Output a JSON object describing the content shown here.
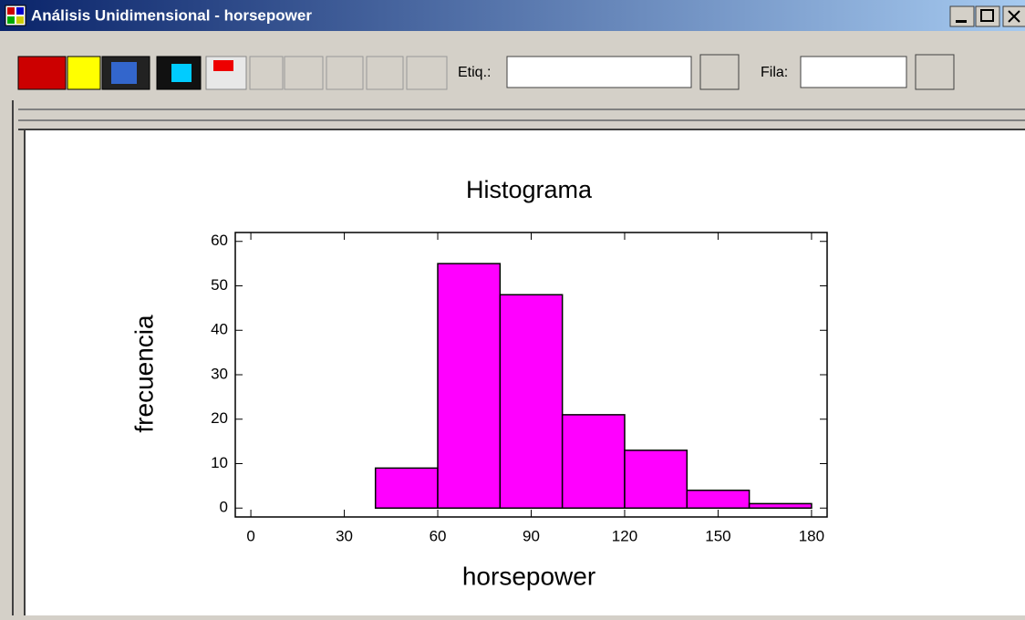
{
  "window": {
    "title": "Análisis Unidimensional - horsepower",
    "label_field": "Etiq.:",
    "row_field": "Fila:"
  },
  "chart_data": {
    "type": "histogram",
    "title": "Histograma",
    "xlabel": "horsepower",
    "ylabel": "frecuencia",
    "bins": [
      0,
      20,
      40,
      60,
      80,
      100,
      120,
      140,
      160,
      180
    ],
    "values": [
      0,
      0,
      9,
      55,
      48,
      21,
      13,
      4,
      1
    ],
    "color": "#ff00ff",
    "xlim": [
      -5,
      185
    ],
    "xticks": [
      0,
      30,
      60,
      90,
      120,
      150,
      180
    ],
    "ylim": [
      -2,
      62
    ],
    "yticks": [
      0,
      10,
      20,
      30,
      40,
      50,
      60
    ]
  }
}
